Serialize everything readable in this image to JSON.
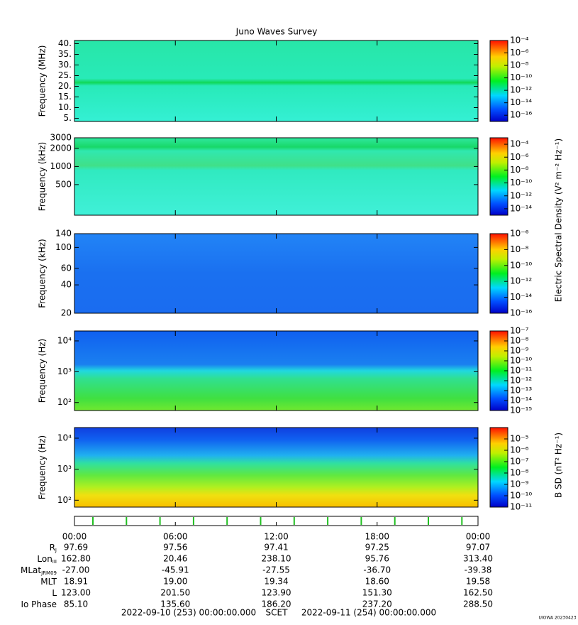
{
  "title": "Juno Waves Survey",
  "xlim": [
    0,
    24
  ],
  "xticks": [
    {
      "value": 0,
      "label": "00:00"
    },
    {
      "value": 6,
      "label": "06:00"
    },
    {
      "value": 12,
      "label": "12:00"
    },
    {
      "value": 18,
      "label": "18:00"
    },
    {
      "value": 24,
      "label": "00:00"
    }
  ],
  "chart_data": [
    {
      "type": "spectrogram",
      "ylabel": "Frequency (MHz)",
      "yscale": "linear",
      "ylim": [
        3.5,
        41.5
      ],
      "yticks": [
        {
          "value": 5,
          "label": "5."
        },
        {
          "value": 10,
          "label": "10."
        },
        {
          "value": 15,
          "label": "15."
        },
        {
          "value": 20,
          "label": "20."
        },
        {
          "value": 25,
          "label": "25."
        },
        {
          "value": 30,
          "label": "30."
        },
        {
          "value": 35,
          "label": "35."
        },
        {
          "value": 40,
          "label": "40."
        }
      ],
      "clim": [
        1e-17,
        0.0001
      ],
      "cticks": [
        {
          "value": 0.0001,
          "label": "10⁻⁴"
        },
        {
          "value": 1e-06,
          "label": "10⁻⁶"
        },
        {
          "value": 1e-08,
          "label": "10⁻⁸"
        },
        {
          "value": 1e-10,
          "label": "10⁻¹⁰"
        },
        {
          "value": 1e-12,
          "label": "10⁻¹²"
        },
        {
          "value": 1e-14,
          "label": "10⁻¹⁴"
        },
        {
          "value": 1e-16,
          "label": "10⁻¹⁶"
        }
      ]
    },
    {
      "type": "spectrogram",
      "ylabel": "Frequency (kHz)",
      "yscale": "log",
      "ylim": [
        155,
        3000
      ],
      "yticks": [
        500,
        1000,
        2000,
        3000
      ],
      "clim": [
        1e-15,
        0.001
      ],
      "cticks": [
        {
          "value": 0.0001,
          "label": "10⁻⁴"
        },
        {
          "value": 1e-06,
          "label": "10⁻⁶"
        },
        {
          "value": 1e-08,
          "label": "10⁻⁸"
        },
        {
          "value": 1e-10,
          "label": "10⁻¹⁰"
        },
        {
          "value": 1e-12,
          "label": "10⁻¹²"
        },
        {
          "value": 1e-14,
          "label": "10⁻¹⁴"
        }
      ]
    },
    {
      "type": "spectrogram",
      "ylabel": "Frequency (kHz)",
      "yscale": "log",
      "ylim": [
        20,
        140
      ],
      "yticks": [
        20,
        40,
        60,
        100,
        140
      ],
      "clim": [
        1e-16,
        1e-06
      ],
      "cticks": [
        {
          "value": 1e-06,
          "label": "10⁻⁶"
        },
        {
          "value": 1e-08,
          "label": "10⁻⁸"
        },
        {
          "value": 1e-10,
          "label": "10⁻¹⁰"
        },
        {
          "value": 1e-12,
          "label": "10⁻¹²"
        },
        {
          "value": 1e-14,
          "label": "10⁻¹⁴"
        },
        {
          "value": 1e-16,
          "label": "10⁻¹⁶"
        }
      ]
    },
    {
      "type": "spectrogram",
      "ylabel": "Frequency (Hz)",
      "yscale": "log",
      "ylim": [
        55,
        21000
      ],
      "yticks": [
        {
          "value": 100,
          "label": "10²"
        },
        {
          "value": 1000,
          "label": "10³"
        },
        {
          "value": 10000,
          "label": "10⁴"
        }
      ],
      "clim": [
        1e-15,
        1e-07
      ],
      "cticks": [
        {
          "value": 1e-07,
          "label": "10⁻⁷"
        },
        {
          "value": 1e-08,
          "label": "10⁻⁸"
        },
        {
          "value": 1e-09,
          "label": "10⁻⁹"
        },
        {
          "value": 1e-10,
          "label": "10⁻¹⁰"
        },
        {
          "value": 1e-11,
          "label": "10⁻¹¹"
        },
        {
          "value": 1e-12,
          "label": "10⁻¹²"
        },
        {
          "value": 1e-13,
          "label": "10⁻¹³"
        },
        {
          "value": 1e-14,
          "label": "10⁻¹⁴"
        },
        {
          "value": 1e-15,
          "label": "10⁻¹⁵"
        }
      ]
    },
    {
      "type": "spectrogram",
      "ylabel": "Frequency (Hz)",
      "yscale": "log",
      "ylim": [
        60,
        22000
      ],
      "yticks": [
        {
          "value": 100,
          "label": "10²"
        },
        {
          "value": 1000,
          "label": "10³"
        },
        {
          "value": 10000,
          "label": "10⁴"
        }
      ],
      "clim": [
        1e-11,
        0.0001
      ],
      "cticks": [
        {
          "value": 1e-05,
          "label": "10⁻⁵"
        },
        {
          "value": 1e-06,
          "label": "10⁻⁶"
        },
        {
          "value": 1e-07,
          "label": "10⁻⁷"
        },
        {
          "value": 1e-08,
          "label": "10⁻⁸"
        },
        {
          "value": 1e-09,
          "label": "10⁻⁹"
        },
        {
          "value": 1e-10,
          "label": "10⁻¹⁰"
        },
        {
          "value": 1e-11,
          "label": "10⁻¹¹"
        }
      ]
    }
  ],
  "colorbar_labels": [
    "Electric Spectral Density (V² m⁻² Hz⁻¹)",
    "B SD (nT² Hz⁻¹)"
  ],
  "ephemeris": {
    "rows": [
      {
        "label": "R",
        "sub": "J",
        "values": [
          "97.69",
          "97.56",
          "97.41",
          "97.25",
          "97.07"
        ]
      },
      {
        "label": "Lon",
        "sub": "III",
        "values": [
          "162.80",
          "20.46",
          "238.10",
          "95.76",
          "313.40"
        ]
      },
      {
        "label": "MLat",
        "sub": "JRM09",
        "values": [
          "-27.00",
          "-45.91",
          "-27.55",
          "-36.70",
          "-39.38"
        ]
      },
      {
        "label": "MLT",
        "values": [
          "18.91",
          "19.00",
          "19.34",
          "18.60",
          "19.58"
        ]
      },
      {
        "label": "L",
        "values": [
          "123.00",
          "201.50",
          "123.90",
          "151.30",
          "162.50"
        ]
      },
      {
        "label": "Io Phase",
        "values": [
          "85.10",
          "135.60",
          "186.20",
          "237.20",
          "288.50"
        ]
      }
    ]
  },
  "footer": {
    "start": "2022-09-10 (253) 00:00:00.000",
    "scale": "SCET",
    "end": "2022-09-11 (254) 00:00:00.000",
    "credit": "UIOWA 20230423"
  }
}
